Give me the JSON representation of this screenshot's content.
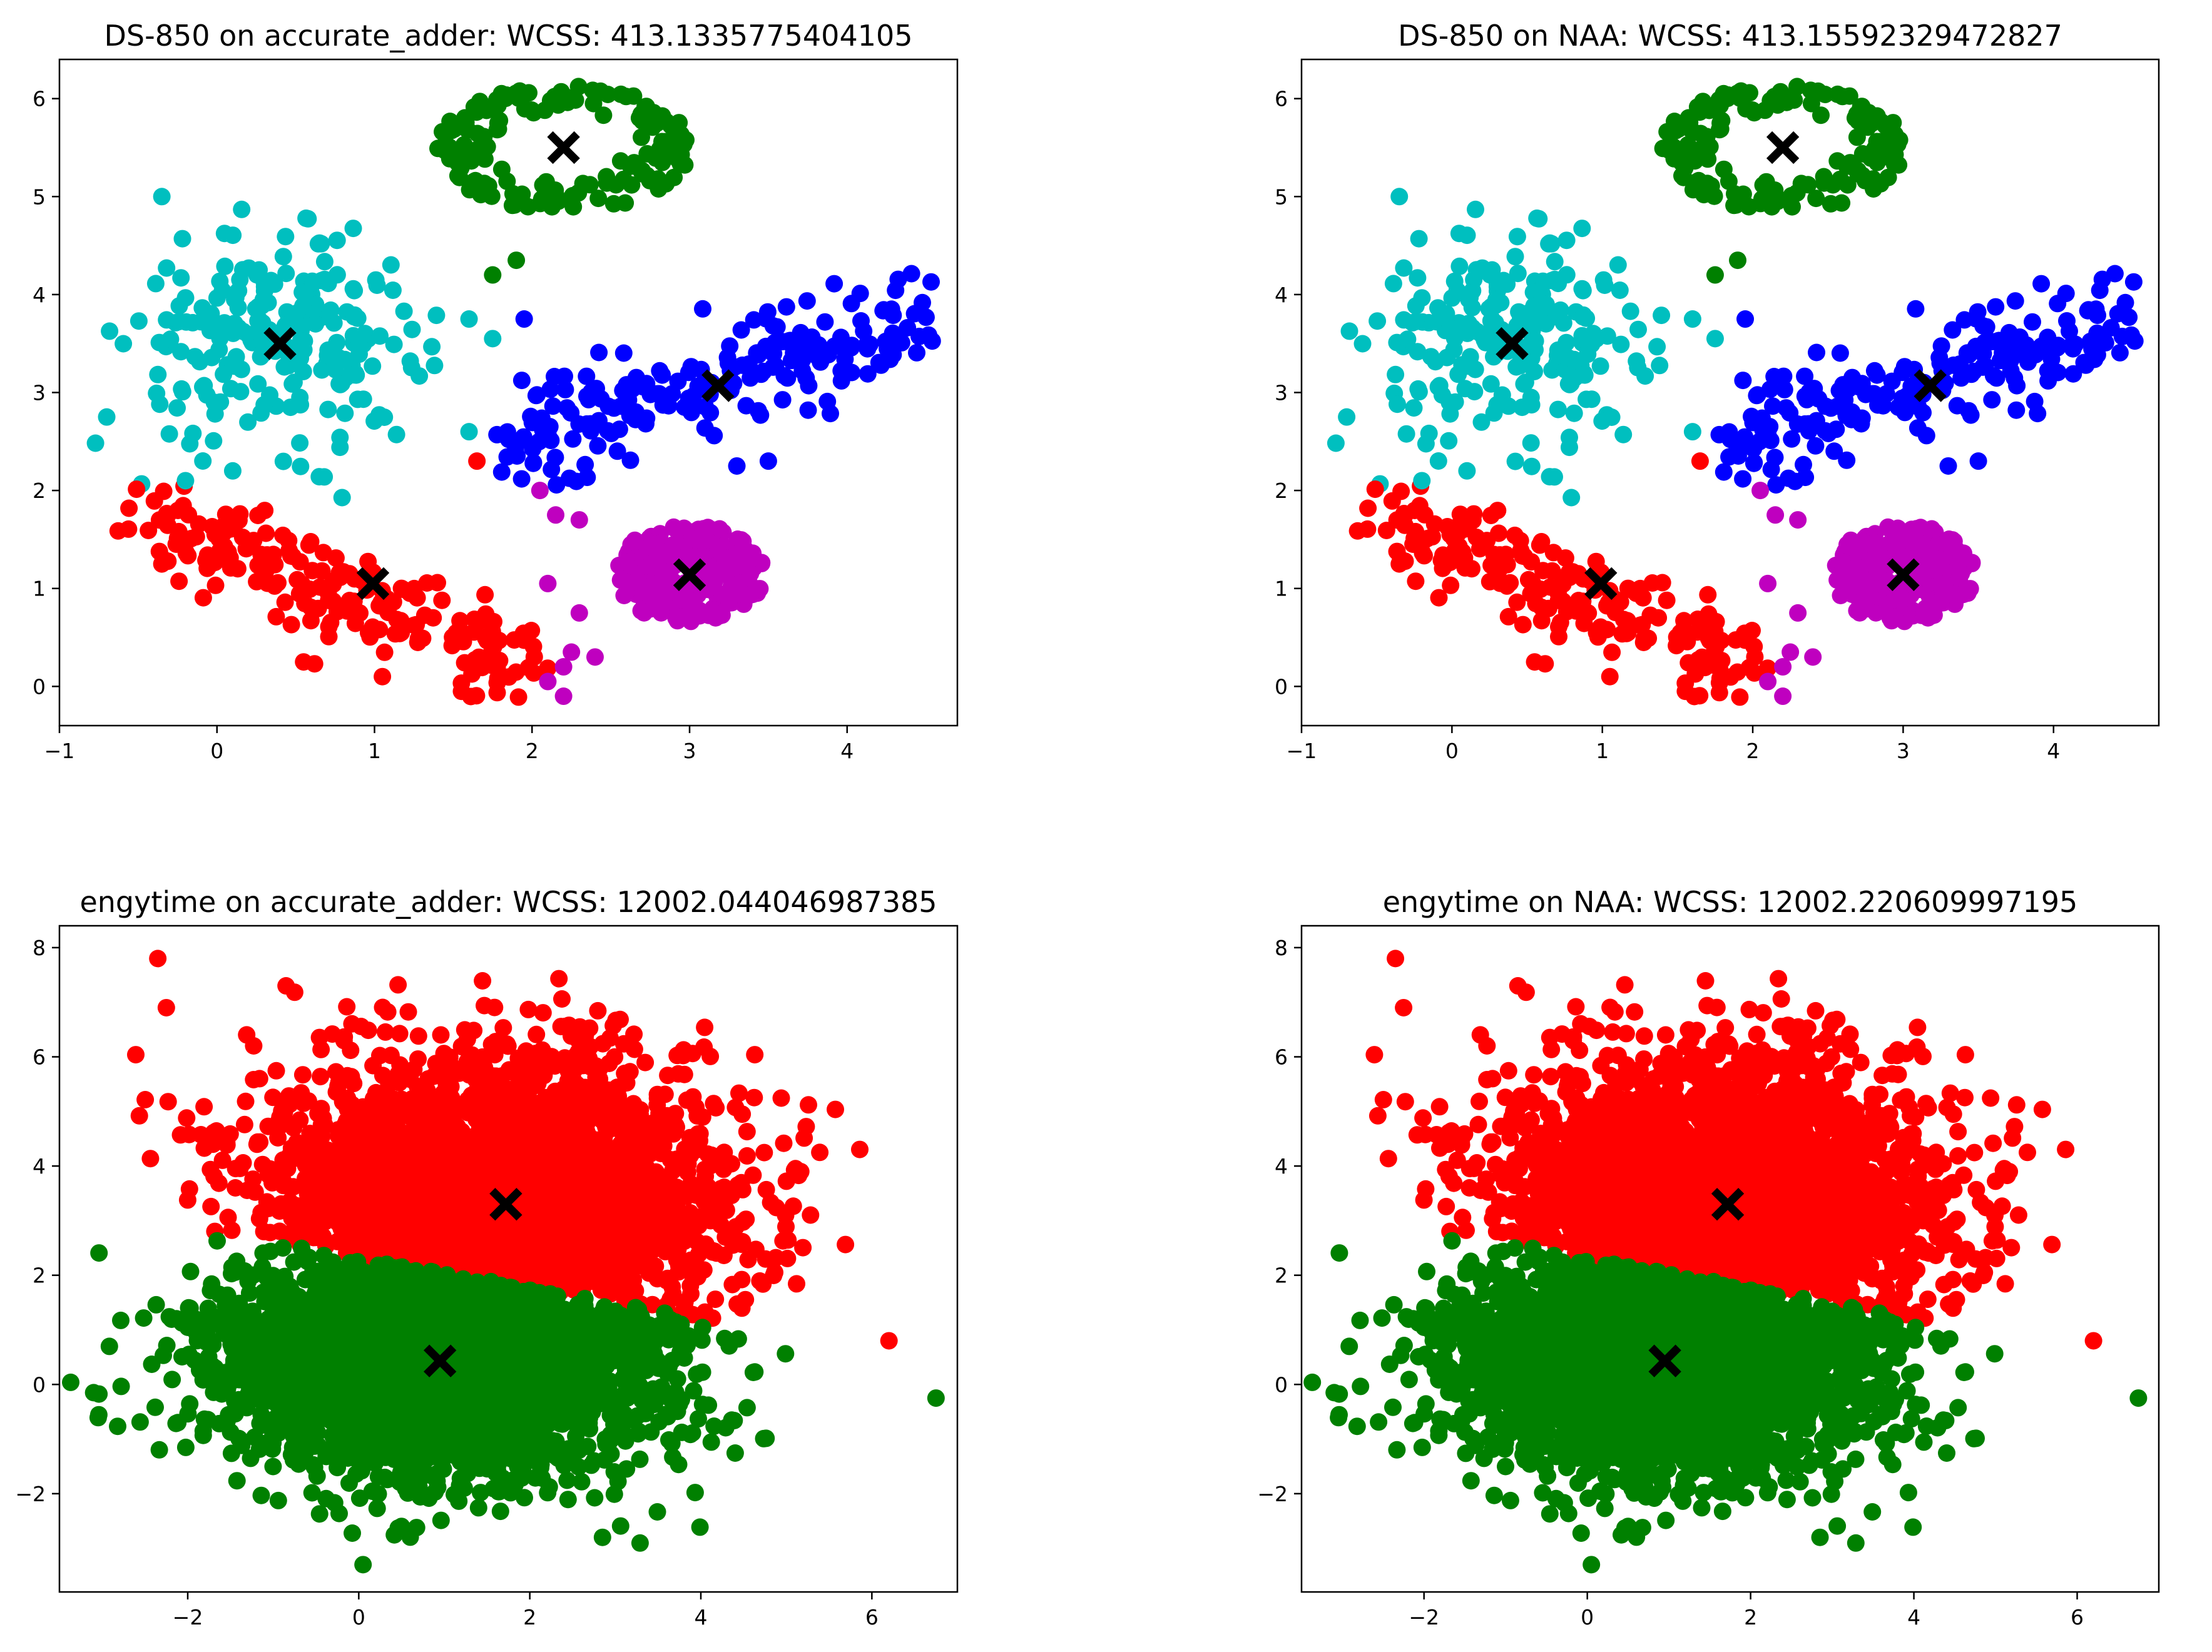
{
  "figure": {
    "panel_order": [
      "top-left",
      "top-right",
      "bottom-left",
      "bottom-right"
    ]
  },
  "colors": {
    "red": "#ff0000",
    "green": "#008000",
    "blue": "#0000ff",
    "cyan": "#00bfbf",
    "magenta": "#bf00bf",
    "centroid": "#000000",
    "axis": "#000000"
  },
  "chart_data": [
    {
      "type": "scatter",
      "title": "DS-850 on accurate_adder: WCSS: 413.1335775404105",
      "xlabel": "",
      "ylabel": "",
      "xlim": [
        -1,
        4.7
      ],
      "ylim": [
        -0.4,
        6.4
      ],
      "xticks": [
        -1,
        0,
        1,
        2,
        3,
        4
      ],
      "yticks": [
        0,
        1,
        2,
        3,
        4,
        5,
        6
      ],
      "xtick_labels": [
        "−1",
        "0",
        "1",
        "2",
        "3",
        "4"
      ],
      "ytick_labels": [
        "0",
        "1",
        "2",
        "3",
        "4",
        "5",
        "6"
      ],
      "grid": false,
      "legend": "none",
      "clusters": [
        {
          "name": "cluster-green",
          "color": "green",
          "shape": "ring",
          "n": 160,
          "cx": 2.2,
          "cy": 5.5,
          "rx": 0.8,
          "ry": 0.65,
          "r0": 0.45
        },
        {
          "name": "cluster-cyan",
          "color": "cyan",
          "shape": "gauss",
          "n": 230,
          "cx": 0.4,
          "cy": 3.5,
          "sx": 0.45,
          "sy": 0.5
        },
        {
          "name": "cluster-blue",
          "color": "blue",
          "shape": "linear",
          "n": 210,
          "x0": 1.75,
          "x1": 4.5,
          "y0": 2.5,
          "y1": 3.75,
          "s": 0.28
        },
        {
          "name": "cluster-red",
          "color": "red",
          "shape": "linear",
          "n": 210,
          "x0": -0.5,
          "x1": 2.05,
          "y0": 1.8,
          "y1": 0.2,
          "s": 0.27
        },
        {
          "name": "cluster-magenta",
          "color": "magenta",
          "shape": "disk",
          "n": 260,
          "cx": 3.0,
          "cy": 1.15,
          "rx": 0.48,
          "ry": 0.5
        }
      ],
      "extra_points": [
        {
          "color": "green",
          "x": 1.75,
          "y": 4.2
        },
        {
          "color": "green",
          "x": 1.9,
          "y": 4.35
        },
        {
          "color": "magenta",
          "x": 2.05,
          "y": 2.0
        },
        {
          "color": "magenta",
          "x": 2.15,
          "y": 1.75
        },
        {
          "color": "magenta",
          "x": 2.3,
          "y": 1.7
        },
        {
          "color": "magenta",
          "x": 2.1,
          "y": 1.05
        },
        {
          "color": "magenta",
          "x": 2.3,
          "y": 0.75
        },
        {
          "color": "magenta",
          "x": 2.25,
          "y": 0.35
        },
        {
          "color": "magenta",
          "x": 2.4,
          "y": 0.3
        },
        {
          "color": "magenta",
          "x": 2.2,
          "y": 0.2
        },
        {
          "color": "magenta",
          "x": 2.1,
          "y": 0.05
        },
        {
          "color": "magenta",
          "x": 2.2,
          "y": -0.1
        },
        {
          "color": "cyan",
          "x": 1.6,
          "y": 2.6
        },
        {
          "color": "cyan",
          "x": 1.75,
          "y": 3.55
        },
        {
          "color": "cyan",
          "x": 1.6,
          "y": 3.75
        },
        {
          "color": "cyan",
          "x": -0.7,
          "y": 2.75
        },
        {
          "color": "cyan",
          "x": -0.35,
          "y": 5.0
        },
        {
          "color": "cyan",
          "x": 0.1,
          "y": 2.2
        },
        {
          "color": "cyan",
          "x": -0.2,
          "y": 2.1
        },
        {
          "color": "blue",
          "x": 1.95,
          "y": 3.75
        },
        {
          "color": "blue",
          "x": 3.3,
          "y": 2.25
        },
        {
          "color": "blue",
          "x": 3.5,
          "y": 2.3
        },
        {
          "color": "red",
          "x": 0.55,
          "y": 0.25
        },
        {
          "color": "red",
          "x": 1.05,
          "y": 0.1
        },
        {
          "color": "red",
          "x": 1.65,
          "y": 2.3
        },
        {
          "color": "red",
          "x": -0.35,
          "y": 1.25
        }
      ],
      "centroids": [
        {
          "x": 2.2,
          "y": 5.5
        },
        {
          "x": 0.4,
          "y": 3.5
        },
        {
          "x": 3.18,
          "y": 3.07
        },
        {
          "x": 0.99,
          "y": 1.05
        },
        {
          "x": 3.0,
          "y": 1.14
        }
      ]
    },
    {
      "type": "scatter",
      "title": "DS-850 on NAA: WCSS: 413.15592329472827",
      "xlabel": "",
      "ylabel": "",
      "xlim": [
        -1,
        4.7
      ],
      "ylim": [
        -0.4,
        6.4
      ],
      "xticks": [
        -1,
        0,
        1,
        2,
        3,
        4
      ],
      "yticks": [
        0,
        1,
        2,
        3,
        4,
        5,
        6
      ],
      "xtick_labels": [
        "−1",
        "0",
        "1",
        "2",
        "3",
        "4"
      ],
      "ytick_labels": [
        "0",
        "1",
        "2",
        "3",
        "4",
        "5",
        "6"
      ],
      "grid": false,
      "legend": "none",
      "clusters": [
        {
          "name": "cluster-green",
          "color": "green",
          "shape": "ring",
          "n": 160,
          "cx": 2.2,
          "cy": 5.5,
          "rx": 0.8,
          "ry": 0.65,
          "r0": 0.45
        },
        {
          "name": "cluster-cyan",
          "color": "cyan",
          "shape": "gauss",
          "n": 230,
          "cx": 0.4,
          "cy": 3.5,
          "sx": 0.45,
          "sy": 0.5
        },
        {
          "name": "cluster-blue",
          "color": "blue",
          "shape": "linear",
          "n": 210,
          "x0": 1.75,
          "x1": 4.5,
          "y0": 2.5,
          "y1": 3.75,
          "s": 0.28
        },
        {
          "name": "cluster-red",
          "color": "red",
          "shape": "linear",
          "n": 210,
          "x0": -0.5,
          "x1": 2.05,
          "y0": 1.8,
          "y1": 0.2,
          "s": 0.27
        },
        {
          "name": "cluster-magenta",
          "color": "magenta",
          "shape": "disk",
          "n": 260,
          "cx": 3.0,
          "cy": 1.15,
          "rx": 0.48,
          "ry": 0.5
        }
      ],
      "extra_points": [
        {
          "color": "green",
          "x": 1.75,
          "y": 4.2
        },
        {
          "color": "green",
          "x": 1.9,
          "y": 4.35
        },
        {
          "color": "magenta",
          "x": 2.05,
          "y": 2.0
        },
        {
          "color": "magenta",
          "x": 2.15,
          "y": 1.75
        },
        {
          "color": "magenta",
          "x": 2.3,
          "y": 1.7
        },
        {
          "color": "magenta",
          "x": 2.1,
          "y": 1.05
        },
        {
          "color": "magenta",
          "x": 2.3,
          "y": 0.75
        },
        {
          "color": "magenta",
          "x": 2.25,
          "y": 0.35
        },
        {
          "color": "magenta",
          "x": 2.4,
          "y": 0.3
        },
        {
          "color": "magenta",
          "x": 2.2,
          "y": 0.2
        },
        {
          "color": "magenta",
          "x": 2.1,
          "y": 0.05
        },
        {
          "color": "magenta",
          "x": 2.2,
          "y": -0.1
        },
        {
          "color": "cyan",
          "x": 1.6,
          "y": 2.6
        },
        {
          "color": "cyan",
          "x": 1.75,
          "y": 3.55
        },
        {
          "color": "cyan",
          "x": 1.6,
          "y": 3.75
        },
        {
          "color": "cyan",
          "x": -0.7,
          "y": 2.75
        },
        {
          "color": "cyan",
          "x": -0.35,
          "y": 5.0
        },
        {
          "color": "cyan",
          "x": 0.1,
          "y": 2.2
        },
        {
          "color": "cyan",
          "x": -0.2,
          "y": 2.1
        },
        {
          "color": "blue",
          "x": 1.95,
          "y": 3.75
        },
        {
          "color": "blue",
          "x": 3.3,
          "y": 2.25
        },
        {
          "color": "blue",
          "x": 3.5,
          "y": 2.3
        },
        {
          "color": "red",
          "x": 0.55,
          "y": 0.25
        },
        {
          "color": "red",
          "x": 1.05,
          "y": 0.1
        },
        {
          "color": "red",
          "x": 1.65,
          "y": 2.3
        },
        {
          "color": "red",
          "x": -0.35,
          "y": 1.25
        }
      ],
      "centroids": [
        {
          "x": 2.2,
          "y": 5.5
        },
        {
          "x": 0.4,
          "y": 3.5
        },
        {
          "x": 3.18,
          "y": 3.07
        },
        {
          "x": 0.99,
          "y": 1.05
        },
        {
          "x": 3.0,
          "y": 1.14
        }
      ]
    },
    {
      "type": "scatter",
      "title": "engytime on accurate_adder: WCSS: 12002.044046987385",
      "xlabel": "",
      "ylabel": "",
      "xlim": [
        -3.5,
        7.0
      ],
      "ylim": [
        -3.8,
        8.4
      ],
      "xticks": [
        -2,
        0,
        2,
        4,
        6
      ],
      "yticks": [
        -2,
        0,
        2,
        4,
        6,
        8
      ],
      "xtick_labels": [
        "−2",
        "0",
        "2",
        "4",
        "6"
      ],
      "ytick_labels": [
        "−2",
        "0",
        "2",
        "4",
        "6",
        "8"
      ],
      "grid": false,
      "legend": "none",
      "split_line": {
        "x0": -0.5,
        "y0": 2.45,
        "x1": 5.3,
        "y1": 0.85
      },
      "clusters": [
        {
          "name": "cluster-red",
          "color": "red",
          "shape": "halfplane",
          "side": "above",
          "n": 2600,
          "cx": 1.6,
          "cy": 3.4,
          "sx": 1.35,
          "sy": 1.3,
          "rot": -0.55
        },
        {
          "name": "cluster-green",
          "color": "green",
          "shape": "halfplane",
          "side": "below",
          "n": 3200,
          "cx": 0.95,
          "cy": 0.4,
          "sx": 1.25,
          "sy": 1.0,
          "rot": -0.1
        }
      ],
      "extra_points": [
        {
          "color": "red",
          "x": -2.35,
          "y": 7.8
        },
        {
          "color": "red",
          "x": -0.85,
          "y": 7.3
        },
        {
          "color": "red",
          "x": 6.2,
          "y": 0.8
        },
        {
          "color": "red",
          "x": -2.25,
          "y": 6.9
        },
        {
          "color": "green",
          "x": 0.05,
          "y": -3.3
        },
        {
          "color": "green",
          "x": 2.85,
          "y": -2.8
        },
        {
          "color": "green",
          "x": -3.1,
          "y": -0.15
        },
        {
          "color": "green",
          "x": 6.75,
          "y": -0.25
        },
        {
          "color": "green",
          "x": 0.5,
          "y": -2.6
        }
      ],
      "centroids": [
        {
          "x": 1.72,
          "y": 3.3
        },
        {
          "x": 0.95,
          "y": 0.43
        }
      ]
    },
    {
      "type": "scatter",
      "title": "engytime on NAA: WCSS: 12002.220609997195",
      "xlabel": "",
      "ylabel": "",
      "xlim": [
        -3.5,
        7.0
      ],
      "ylim": [
        -3.8,
        8.4
      ],
      "xticks": [
        -2,
        0,
        2,
        4,
        6
      ],
      "yticks": [
        -2,
        0,
        2,
        4,
        6,
        8
      ],
      "xtick_labels": [
        "−2",
        "0",
        "2",
        "4",
        "6"
      ],
      "ytick_labels": [
        "−2",
        "0",
        "2",
        "4",
        "6",
        "8"
      ],
      "grid": false,
      "legend": "none",
      "split_line": {
        "x0": -0.5,
        "y0": 2.45,
        "x1": 5.3,
        "y1": 0.85
      },
      "clusters": [
        {
          "name": "cluster-red",
          "color": "red",
          "shape": "halfplane",
          "side": "above",
          "n": 2600,
          "cx": 1.6,
          "cy": 3.4,
          "sx": 1.35,
          "sy": 1.3,
          "rot": -0.55
        },
        {
          "name": "cluster-green",
          "color": "green",
          "shape": "halfplane",
          "side": "below",
          "n": 3200,
          "cx": 0.95,
          "cy": 0.4,
          "sx": 1.25,
          "sy": 1.0,
          "rot": -0.1
        }
      ],
      "extra_points": [
        {
          "color": "red",
          "x": -2.35,
          "y": 7.8
        },
        {
          "color": "red",
          "x": -0.85,
          "y": 7.3
        },
        {
          "color": "red",
          "x": 6.2,
          "y": 0.8
        },
        {
          "color": "red",
          "x": -2.25,
          "y": 6.9
        },
        {
          "color": "green",
          "x": 0.05,
          "y": -3.3
        },
        {
          "color": "green",
          "x": 2.85,
          "y": -2.8
        },
        {
          "color": "green",
          "x": -3.1,
          "y": -0.15
        },
        {
          "color": "green",
          "x": 6.75,
          "y": -0.25
        },
        {
          "color": "green",
          "x": 0.5,
          "y": -2.6
        }
      ],
      "centroids": [
        {
          "x": 1.72,
          "y": 3.3
        },
        {
          "x": 0.95,
          "y": 0.43
        }
      ]
    }
  ]
}
